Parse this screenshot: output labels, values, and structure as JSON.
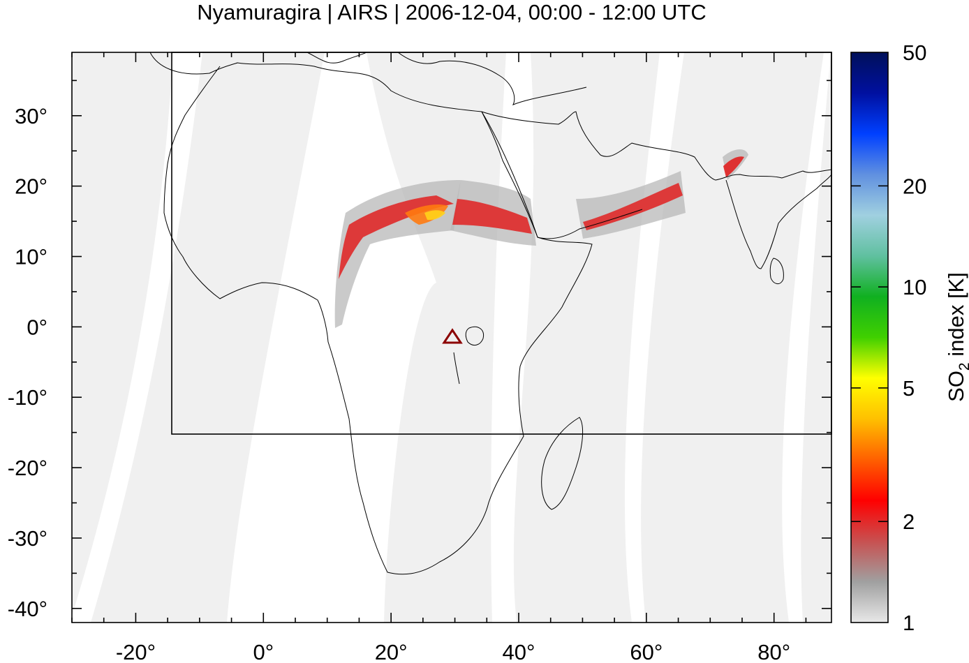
{
  "title": "Nyamuragira | AIRS | 2006-12-04, 00:00 - 12:00 UTC",
  "map": {
    "lon_range": [
      -30,
      89
    ],
    "lat_range": [
      -42,
      39
    ],
    "x_ticks": [
      "-20°",
      "0°",
      "20°",
      "40°",
      "60°",
      "80°"
    ],
    "x_tick_values": [
      -20,
      0,
      20,
      40,
      60,
      80
    ],
    "y_ticks": [
      "30°",
      "20°",
      "10°",
      "0°",
      "-10°",
      "-20°",
      "-30°",
      "-40°"
    ],
    "y_tick_values": [
      30,
      20,
      10,
      0,
      -10,
      -20,
      -30,
      -40
    ],
    "region_box": {
      "lon": [
        -14.5,
        89
      ],
      "lat": [
        -15,
        39
      ]
    },
    "volcano": {
      "name": "Nyamuragira",
      "lon": 29.2,
      "lat": -1.4,
      "marker": "triangle-icon",
      "color": "#8b0000"
    },
    "swath_color": "#f0f0f0",
    "coastline_color": "#000000"
  },
  "colorbar": {
    "label_main": "SO",
    "label_sub": "2",
    "label_rest": " index [K]",
    "scale": "log",
    "range": [
      1,
      50
    ],
    "ticks": [
      "1",
      "2",
      "5",
      "10",
      "20",
      "50"
    ],
    "tick_values": [
      1,
      2,
      5,
      10,
      20,
      50
    ],
    "colors": [
      "#e8e8e8",
      "#a0a0a0",
      "#c85050",
      "#ff0000",
      "#ff6000",
      "#ffc000",
      "#ffff00",
      "#40d000",
      "#10b020",
      "#60c0a0",
      "#a0d0e0",
      "#6090e0",
      "#0040ff",
      "#0010a0",
      "#00105a"
    ]
  }
}
